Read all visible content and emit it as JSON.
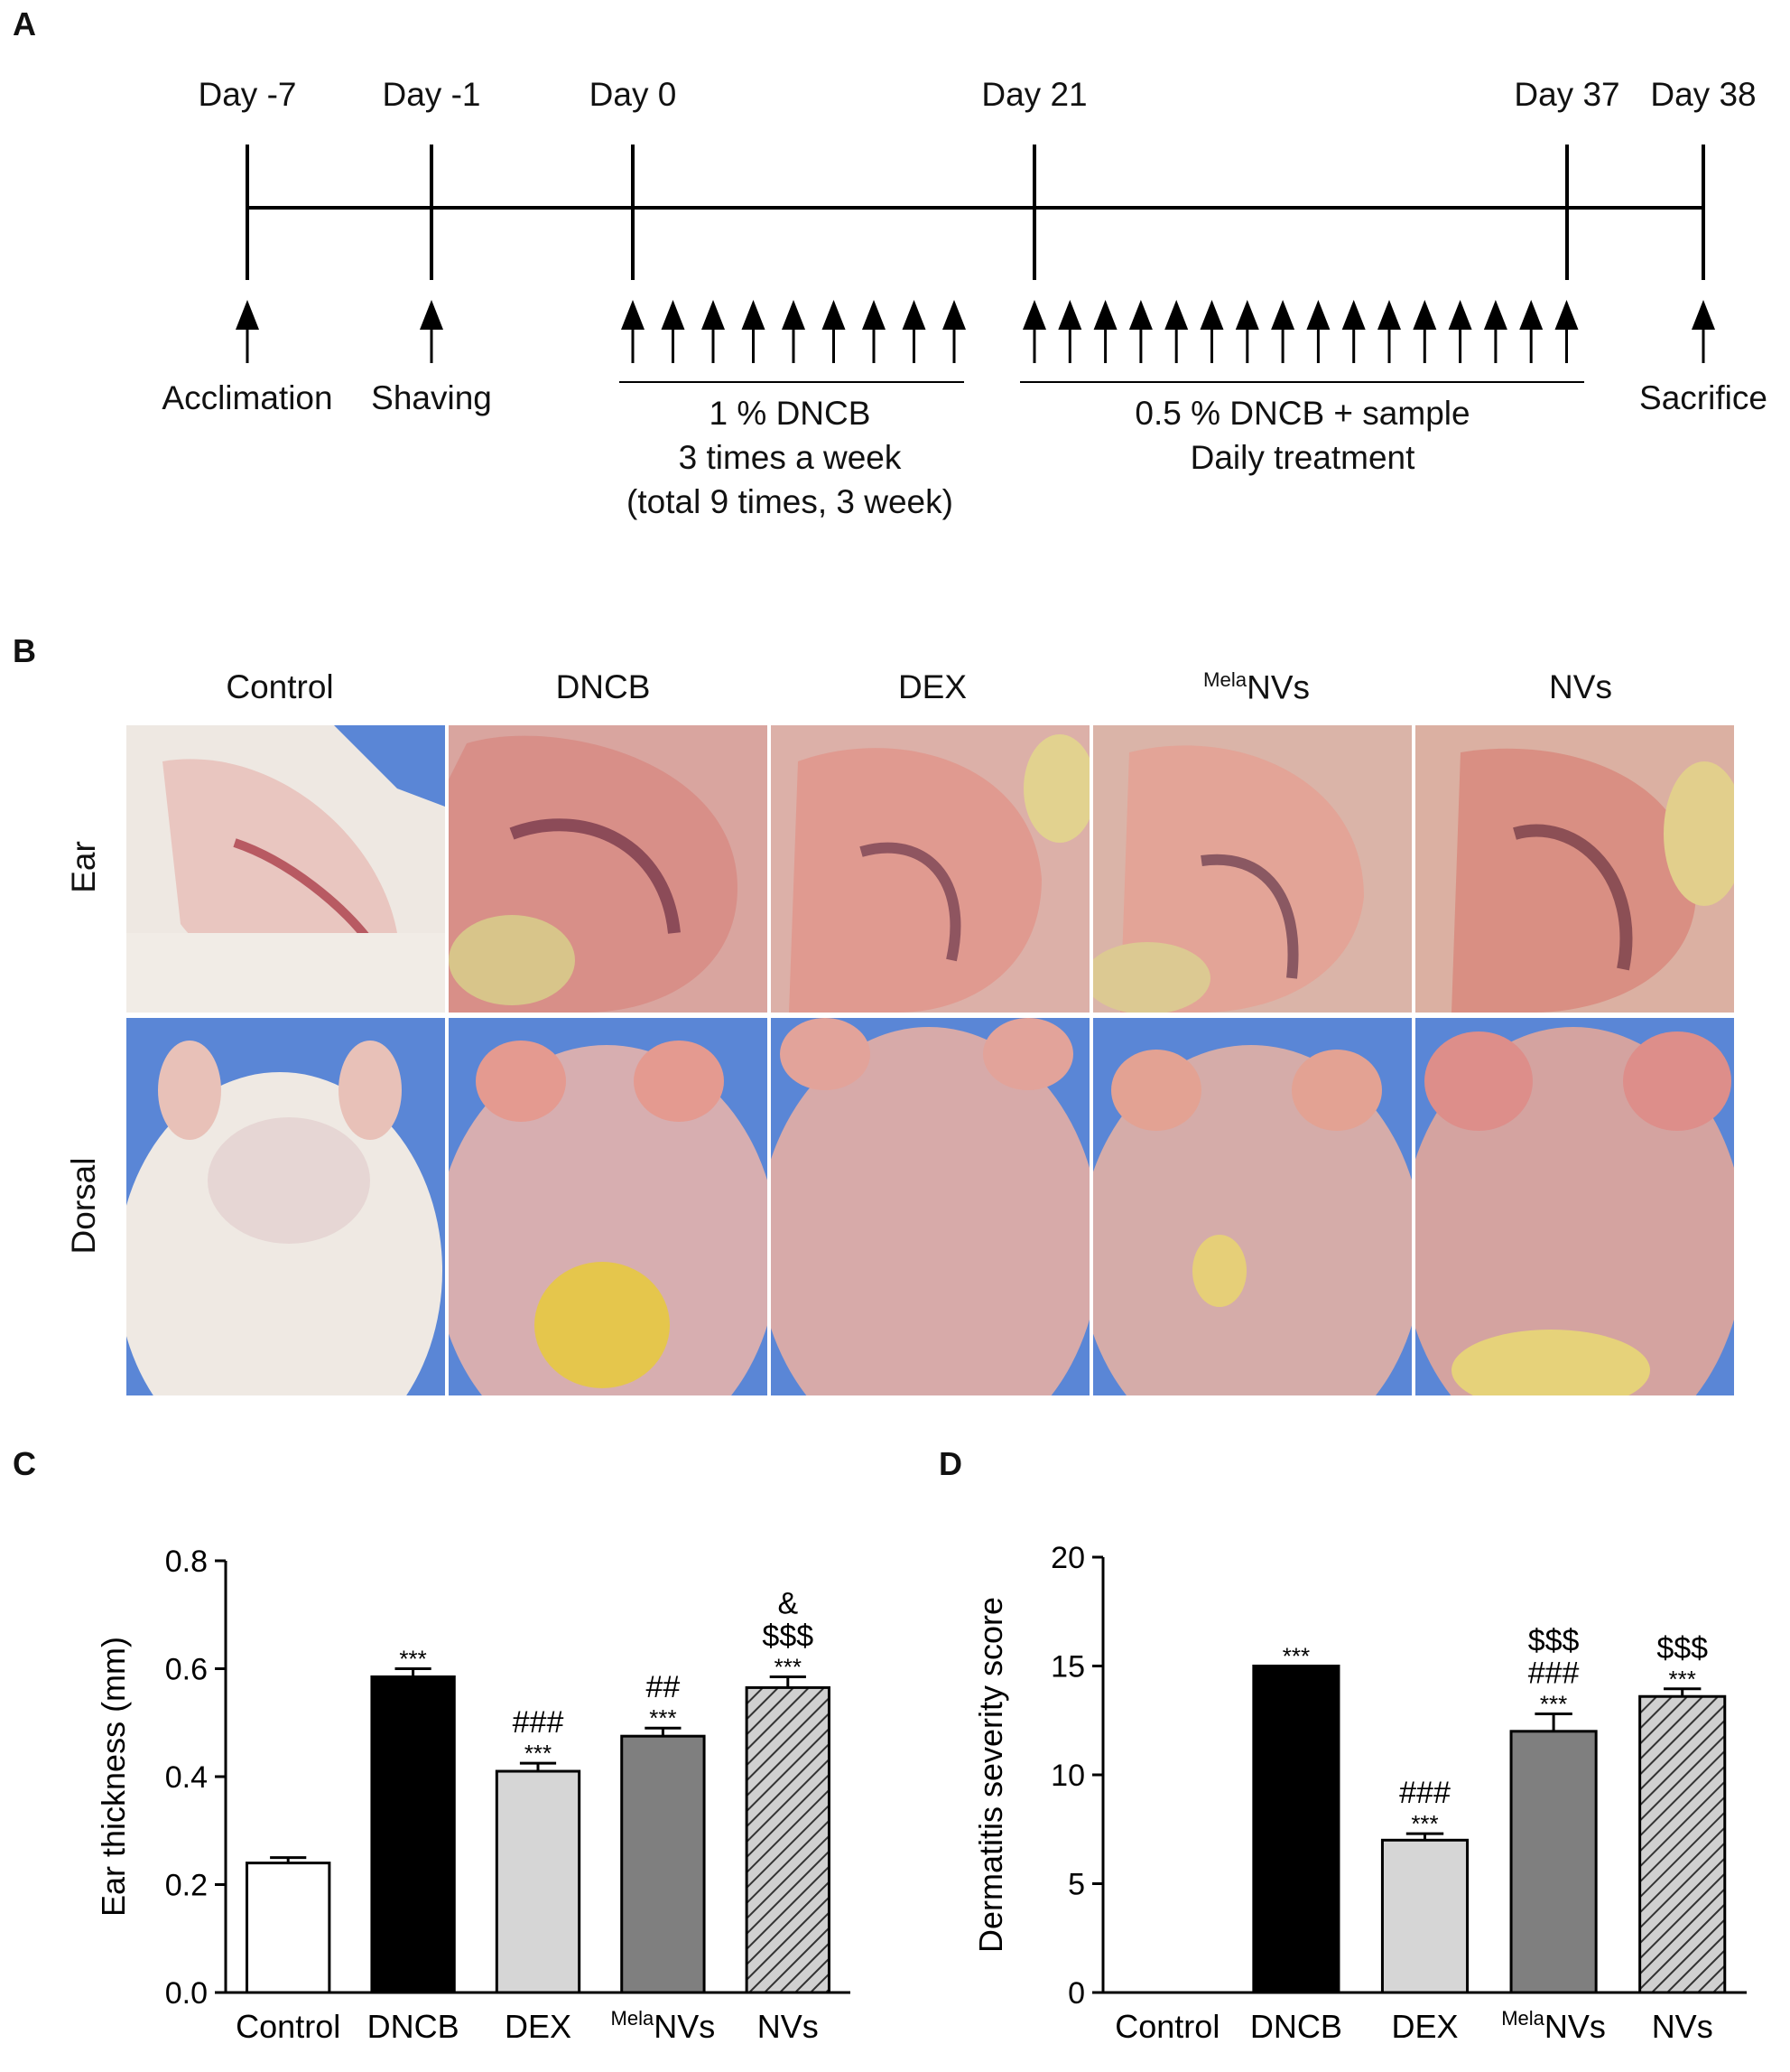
{
  "panels": {
    "a": "A",
    "b": "B",
    "c": "C",
    "d": "D"
  },
  "timeline": {
    "days": [
      "Day -7",
      "Day -1",
      "Day 0",
      "Day 21",
      "Day 37",
      "Day 38"
    ],
    "events": {
      "acclimation": "Acclimation",
      "shaving": "Shaving",
      "sacrifice": "Sacrifice"
    },
    "phase1": {
      "line1": "1 % DNCB",
      "line2": "3 times a week",
      "line3": "(total 9 times, 3 week)"
    },
    "phase2": {
      "line1": "0.5 % DNCB + sample",
      "line2": "Daily treatment"
    }
  },
  "photos": {
    "groups": {
      "control": "Control",
      "dncb": "DNCB",
      "dex": "DEX",
      "mela_sup": "Mela",
      "mela_main": "NVs",
      "nvs": "NVs"
    },
    "rows": {
      "ear": "Ear",
      "dorsal": "Dorsal"
    }
  },
  "colors": {
    "control": "#ffffff",
    "dncb": "#000000",
    "dex": "#d6d6d6",
    "melanvs": "#7f7f7f",
    "nvs": "#d0d0d0",
    "photo_bg": "#4f7fd0"
  },
  "chart_data": [
    {
      "panel": "C",
      "type": "bar",
      "title": "",
      "ylabel": "Ear thickness (mm)",
      "xlabel": "",
      "ylim": [
        0,
        0.8
      ],
      "yticks": [
        "0.0",
        "0.2",
        "0.4",
        "0.6",
        "0.8"
      ],
      "categories": [
        "Control",
        "DNCB",
        "DEX",
        "MelaNVs",
        "NVs"
      ],
      "values": [
        0.24,
        0.585,
        0.41,
        0.475,
        0.565
      ],
      "errors": [
        0.01,
        0.015,
        0.015,
        0.015,
        0.02
      ],
      "annotations": [
        [],
        [
          "***"
        ],
        [
          "***",
          "###"
        ],
        [
          "***",
          "##"
        ],
        [
          "***",
          "$$$",
          "&"
        ]
      ]
    },
    {
      "panel": "D",
      "type": "bar",
      "title": "",
      "ylabel": "Dermatitis severity score",
      "xlabel": "",
      "ylim": [
        0,
        20
      ],
      "yticks": [
        "0",
        "5",
        "10",
        "15",
        "20"
      ],
      "categories": [
        "Control",
        "DNCB",
        "DEX",
        "MelaNVs",
        "NVs"
      ],
      "values": [
        0,
        15,
        7,
        12,
        13.6
      ],
      "errors": [
        0,
        0,
        0.3,
        0.8,
        0.35
      ],
      "annotations": [
        [],
        [
          "***"
        ],
        [
          "***",
          "###"
        ],
        [
          "***",
          "###",
          "$$$"
        ],
        [
          "***",
          "$$$"
        ]
      ]
    }
  ]
}
